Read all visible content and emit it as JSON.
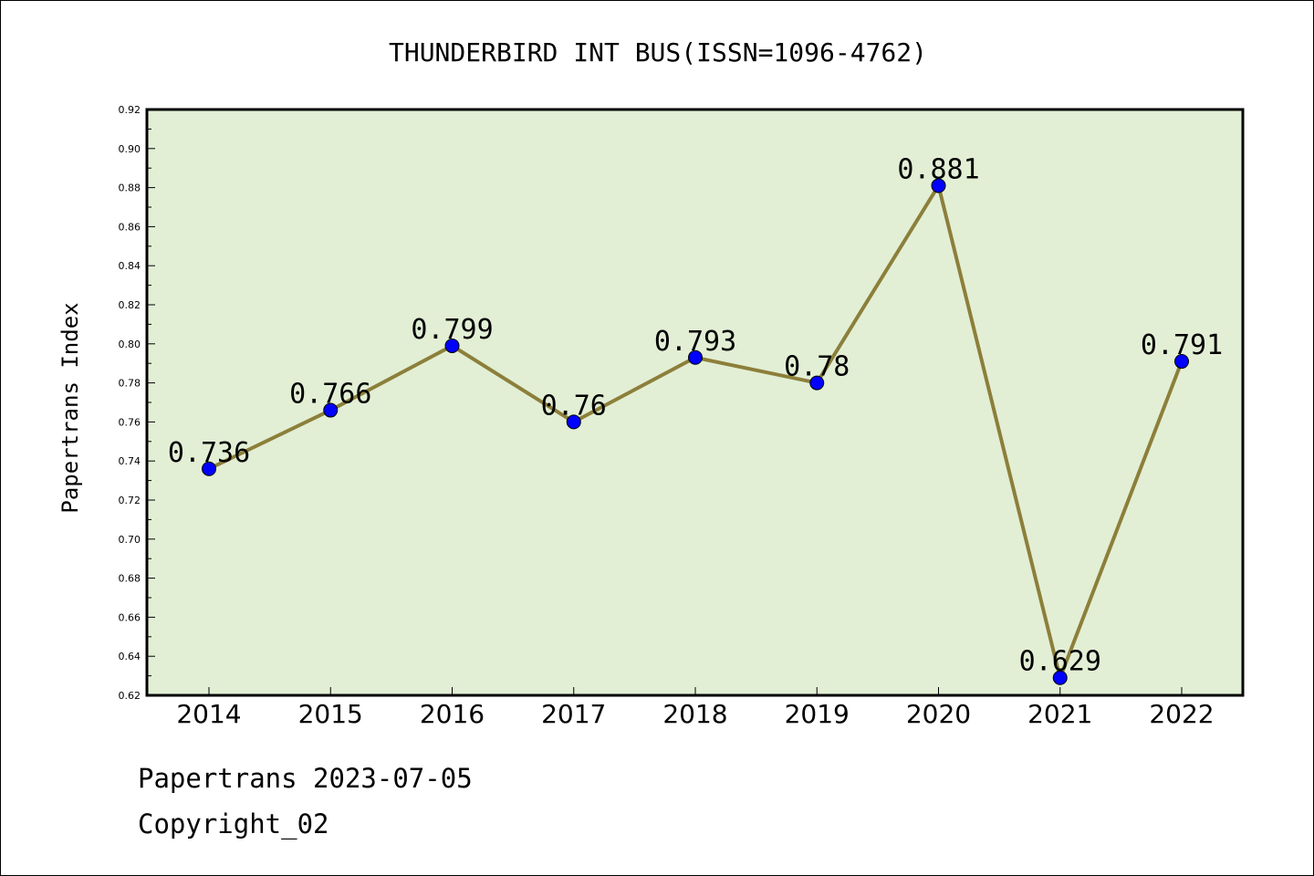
{
  "chart_data": {
    "type": "line",
    "title": "THUNDERBIRD INT BUS(ISSN=1096-4762)",
    "ylabel": "Papertrans Index",
    "xlabel": "",
    "categories": [
      "2014",
      "2015",
      "2016",
      "2017",
      "2018",
      "2019",
      "2020",
      "2021",
      "2022"
    ],
    "values": [
      0.736,
      0.766,
      0.799,
      0.76,
      0.793,
      0.78,
      0.881,
      0.629,
      0.791
    ],
    "data_labels": [
      "0.736",
      "0.766",
      "0.799",
      "0.76",
      "0.793",
      "0.78",
      "0.881",
      "0.629",
      "0.791"
    ],
    "ylim": [
      0.62,
      0.92
    ],
    "yticks": [
      "0.62",
      "0.64",
      "0.66",
      "0.68",
      "0.70",
      "0.72",
      "0.74",
      "0.76",
      "0.78",
      "0.80",
      "0.82",
      "0.84",
      "0.86",
      "0.88",
      "0.90",
      "0.92"
    ],
    "grid": false,
    "legend": "none",
    "colors": {
      "plot_background": "#e2efd5",
      "line": "#8c7f3a",
      "marker": "#0000ff",
      "marker_edge": "#000000",
      "frame": "#000000"
    }
  },
  "footer": {
    "date_line": "Papertrans 2023-07-05",
    "copyright_line": "Copyright_02"
  }
}
